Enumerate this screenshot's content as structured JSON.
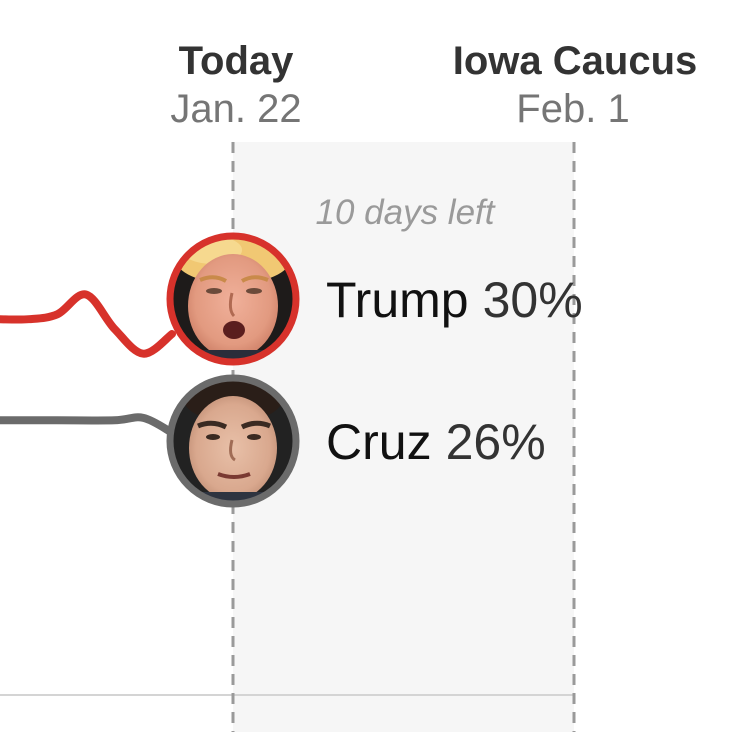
{
  "markers": {
    "today": {
      "label": "Today",
      "date": "Jan. 22"
    },
    "event": {
      "label": "Iowa Caucus",
      "date": "Feb. 1"
    },
    "countdown": "10 days left"
  },
  "colors": {
    "trump": "#d7322b",
    "cruz": "#6b6b6b",
    "shade": "#f6f6f6",
    "guide": "#9a9a9a"
  },
  "chart_data": {
    "type": "line",
    "title": "",
    "xlabel": "",
    "ylabel": "",
    "series": [
      {
        "name": "Trump",
        "value_label": "30%",
        "color": "#d7322b",
        "points": [
          [
            0,
            30.6
          ],
          [
            1,
            30.6
          ],
          [
            2,
            30.8
          ],
          [
            3,
            31.6
          ],
          [
            4,
            30.2
          ],
          [
            5,
            29.2
          ],
          [
            6,
            30.0
          ]
        ]
      },
      {
        "name": "Cruz",
        "value_label": "26%",
        "color": "#6b6b6b",
        "points": [
          [
            0,
            26.5
          ],
          [
            2,
            26.5
          ],
          [
            4,
            26.5
          ],
          [
            5,
            26.6
          ],
          [
            6,
            26.0
          ]
        ]
      }
    ],
    "grid": false,
    "legend": "inline-right"
  },
  "icons": {
    "trump_avatar": "trump-portrait-icon",
    "cruz_avatar": "cruz-portrait-icon"
  }
}
